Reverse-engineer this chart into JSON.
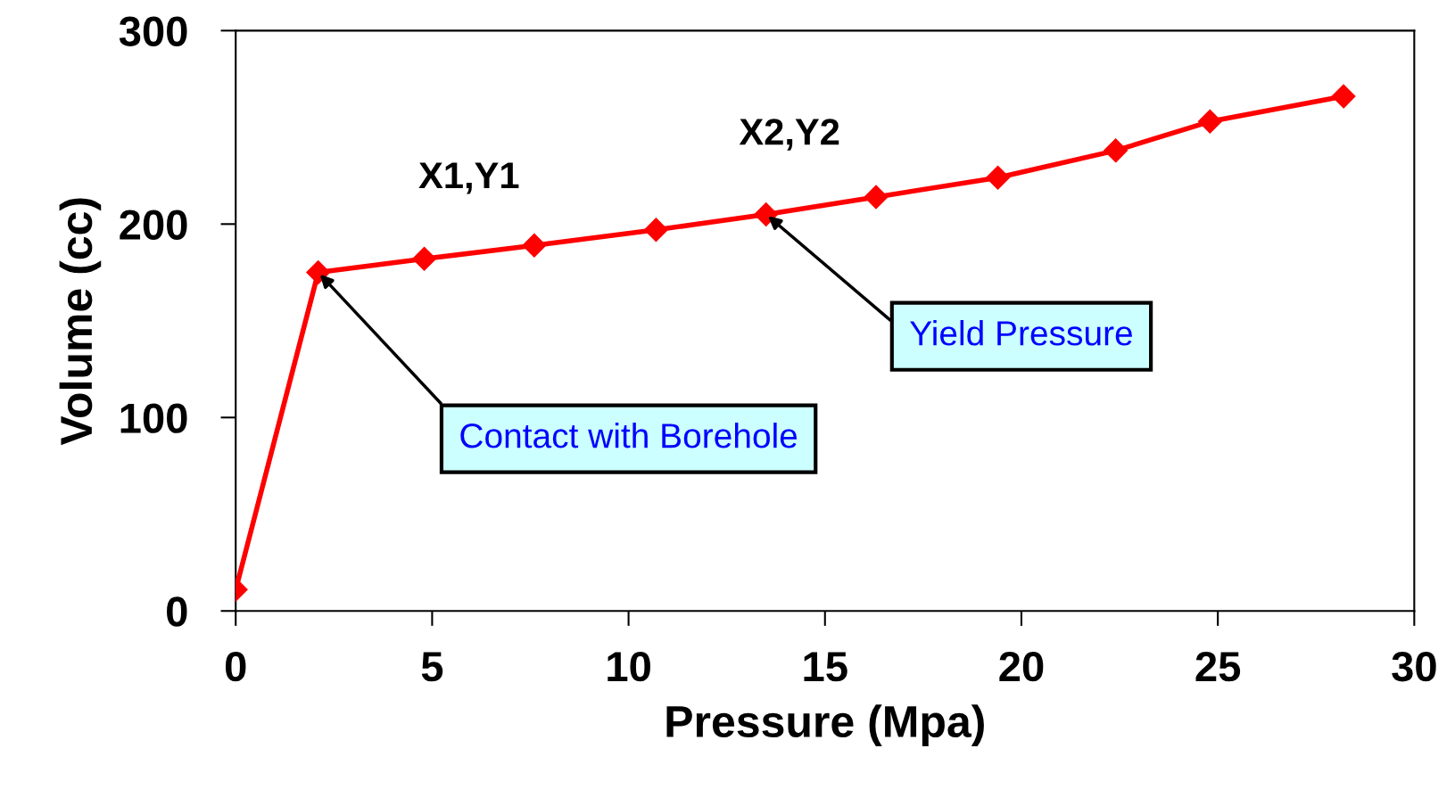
{
  "chart_data": {
    "type": "line",
    "xlabel": "Pressure (Mpa)",
    "ylabel": "Volume (cc)",
    "x": [
      0,
      2.1,
      4.8,
      7.6,
      10.7,
      13.5,
      16.3,
      19.4,
      22.4,
      24.8,
      28.2
    ],
    "series": [
      {
        "color": "#ff0000",
        "values": [
          11,
          175,
          182,
          189,
          197,
          205,
          214,
          224,
          238,
          253,
          266
        ]
      }
    ],
    "xlim": [
      0,
      30
    ],
    "xticks": [
      0,
      5,
      10,
      15,
      20,
      25,
      30
    ],
    "ylim": [
      0,
      300
    ],
    "yticks": [
      0,
      100,
      200,
      300
    ],
    "grid": false,
    "legend": false,
    "marker": "diamond",
    "line_style": "solid",
    "annotations": [
      "X1,Y1",
      "X2,Y2",
      {
        "text": "Contact with Borehole",
        "x": 2.1,
        "y": 175
      },
      {
        "text": "Yield Pressure",
        "x": 13.5,
        "y": 205
      }
    ]
  }
}
